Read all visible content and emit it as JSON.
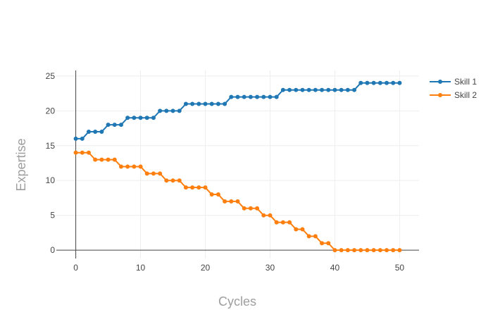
{
  "chart_data": {
    "type": "line",
    "title": "",
    "xlabel": "Cycles",
    "ylabel": "Expertise",
    "xlim": [
      -3,
      53
    ],
    "ylim": [
      -1.2,
      25.8
    ],
    "xticks": [
      0,
      10,
      20,
      30,
      40,
      50
    ],
    "yticks": [
      0,
      5,
      10,
      15,
      20,
      25
    ],
    "grid": true,
    "legend_position": "top-right",
    "series": [
      {
        "name": "Skill 1",
        "color": "#1f77b4",
        "x": [
          0,
          1,
          2,
          3,
          4,
          5,
          6,
          7,
          8,
          9,
          10,
          11,
          12,
          13,
          14,
          15,
          16,
          17,
          18,
          19,
          20,
          21,
          22,
          23,
          24,
          25,
          26,
          27,
          28,
          29,
          30,
          31,
          32,
          33,
          34,
          35,
          36,
          37,
          38,
          39,
          40,
          41,
          42,
          43,
          44,
          45,
          46,
          47,
          48,
          49,
          50
        ],
        "y": [
          16,
          16,
          17,
          17,
          17,
          18,
          18,
          18,
          19,
          19,
          19,
          19,
          19,
          20,
          20,
          20,
          20,
          21,
          21,
          21,
          21,
          21,
          21,
          21,
          22,
          22,
          22,
          22,
          22,
          22,
          22,
          22,
          23,
          23,
          23,
          23,
          23,
          23,
          23,
          23,
          23,
          23,
          23,
          23,
          24,
          24,
          24,
          24,
          24,
          24,
          24
        ]
      },
      {
        "name": "Skill 2",
        "color": "#ff7f0e",
        "x": [
          0,
          1,
          2,
          3,
          4,
          5,
          6,
          7,
          8,
          9,
          10,
          11,
          12,
          13,
          14,
          15,
          16,
          17,
          18,
          19,
          20,
          21,
          22,
          23,
          24,
          25,
          26,
          27,
          28,
          29,
          30,
          31,
          32,
          33,
          34,
          35,
          36,
          37,
          38,
          39,
          40,
          41,
          42,
          43,
          44,
          45,
          46,
          47,
          48,
          49,
          50
        ],
        "y": [
          14,
          14,
          14,
          13,
          13,
          13,
          13,
          12,
          12,
          12,
          12,
          11,
          11,
          11,
          10,
          10,
          10,
          9,
          9,
          9,
          9,
          8,
          8,
          7,
          7,
          7,
          6,
          6,
          6,
          5,
          5,
          4,
          4,
          4,
          3,
          3,
          2,
          2,
          1,
          1,
          0,
          0,
          0,
          0,
          0,
          0,
          0,
          0,
          0,
          0,
          0
        ]
      }
    ]
  }
}
